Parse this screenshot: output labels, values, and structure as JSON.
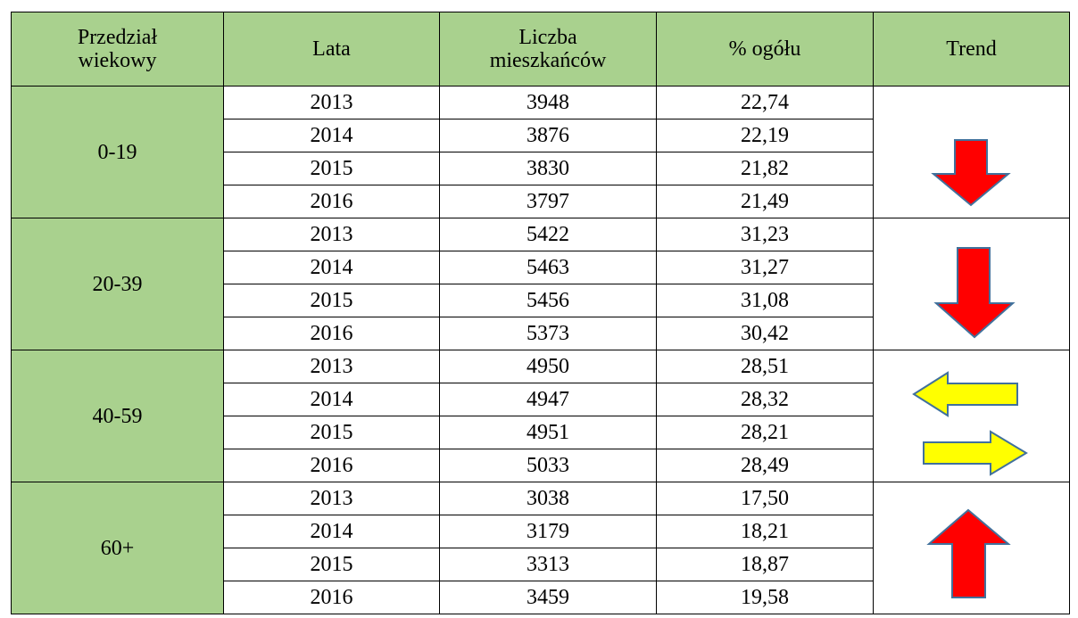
{
  "header": [
    "Przedział wiekowy",
    "Lata",
    "Liczba mieszkańców",
    "% ogółu",
    "Trend"
  ],
  "groups": [
    {
      "label": "0-19",
      "rows": [
        [
          "2013",
          "3948",
          "22,74"
        ],
        [
          "2014",
          "3876",
          "22,19"
        ],
        [
          "2015",
          "3830",
          "21,82"
        ],
        [
          "2016",
          "3797",
          "21,49"
        ]
      ]
    },
    {
      "label": "20-39",
      "rows": [
        [
          "2013",
          "5422",
          "31,23"
        ],
        [
          "2014",
          "5463",
          "31,27"
        ],
        [
          "2015",
          "5456",
          "31,08"
        ],
        [
          "2016",
          "5373",
          "30,42"
        ]
      ]
    },
    {
      "label": "40-59",
      "rows": [
        [
          "2013",
          "4950",
          "28,51"
        ],
        [
          "2014",
          "4947",
          "28,32"
        ],
        [
          "2015",
          "4951",
          "28,21"
        ],
        [
          "2016",
          "5033",
          "28,49"
        ]
      ]
    },
    {
      "label": "60+",
      "rows": [
        [
          "2013",
          "3038",
          "17,50"
        ],
        [
          "2014",
          "3179",
          "18,21"
        ],
        [
          "2015",
          "3313",
          "18,87"
        ],
        [
          "2016",
          "3459",
          "19,58"
        ]
      ]
    }
  ]
}
